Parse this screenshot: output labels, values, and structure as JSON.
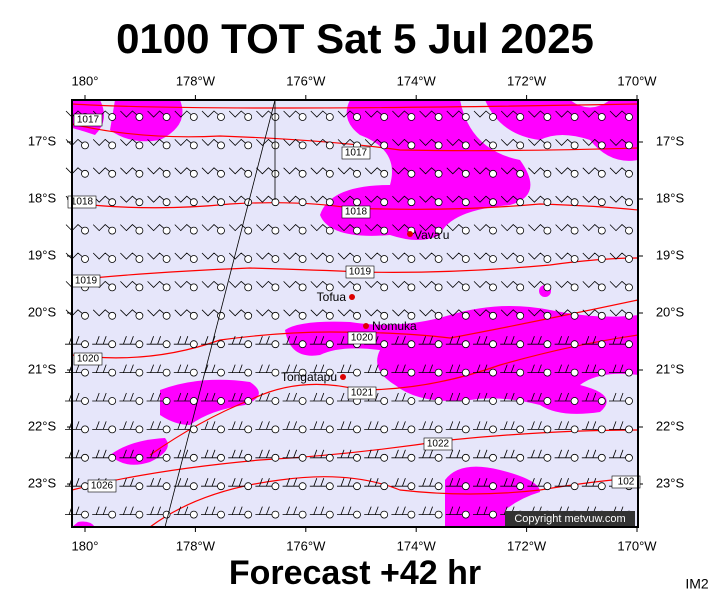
{
  "header": {
    "title": "0100 TOT Sat 5 Jul 2025"
  },
  "map": {
    "lon_ticks": [
      {
        "value": 180,
        "label": "180°"
      },
      {
        "value": 178,
        "label": "178°W"
      },
      {
        "value": 176,
        "label": "176°W"
      },
      {
        "value": 174,
        "label": "174°W"
      },
      {
        "value": 172,
        "label": "172°W"
      },
      {
        "value": 170,
        "label": "170°W"
      }
    ],
    "lat_ticks": [
      {
        "value": 17,
        "label": "17°S"
      },
      {
        "value": 18,
        "label": "18°S"
      },
      {
        "value": 19,
        "label": "19°S"
      },
      {
        "value": 20,
        "label": "20°S"
      },
      {
        "value": 21,
        "label": "21°S"
      },
      {
        "value": 22,
        "label": "22°S"
      },
      {
        "value": 23,
        "label": "23°S"
      }
    ],
    "isobar_labels": [
      "1017",
      "1017",
      "1018",
      "1018",
      "1019",
      "1019",
      "1020",
      "1020",
      "1021",
      "1022",
      "1026",
      "102"
    ],
    "places": [
      "Vava'u",
      "Tofua",
      "Nomuka",
      "Tongatapu"
    ],
    "copyright": "Copyright metvuw.com"
  },
  "footer": {
    "caption": "Forecast +42 hr",
    "code": "IM2"
  }
}
